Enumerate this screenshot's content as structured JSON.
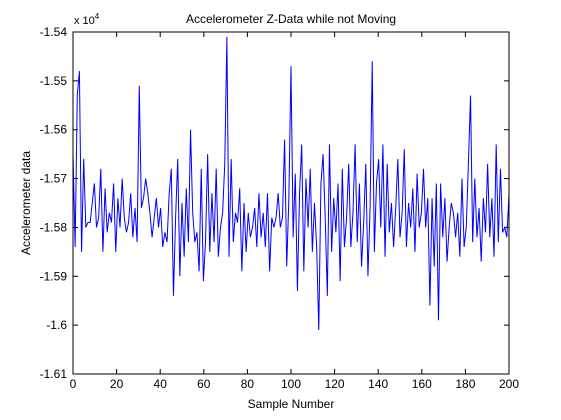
{
  "chart_data": {
    "type": "line",
    "title": "Accelerometer Z-Data while not Moving",
    "xlabel": "Sample Number",
    "ylabel": "Accelerometer data",
    "exponent_label": "x 10",
    "exponent_power": "4",
    "xlim": [
      0,
      200
    ],
    "ylim": [
      -1.61,
      -1.54
    ],
    "xticks": [
      0,
      20,
      40,
      60,
      80,
      100,
      120,
      140,
      160,
      180,
      200
    ],
    "xtick_labels": [
      "0",
      "20",
      "40",
      "60",
      "80",
      "100",
      "120",
      "140",
      "160",
      "180",
      "200"
    ],
    "yticks": [
      -1.61,
      -1.6,
      -1.59,
      -1.58,
      -1.57,
      -1.56,
      -1.55,
      -1.54
    ],
    "ytick_labels": [
      "-1.61",
      "-1.6",
      "-1.59",
      "-1.58",
      "-1.57",
      "-1.56",
      "-1.55",
      "-1.54"
    ],
    "grid": false,
    "line_color": "#0000ff",
    "series": [
      {
        "values": [
          -1.565,
          -1.584,
          -1.553,
          -1.548,
          -1.585,
          -1.566,
          -1.58,
          -1.579,
          -1.579,
          -1.575,
          -1.571,
          -1.58,
          -1.578,
          -1.568,
          -1.585,
          -1.572,
          -1.581,
          -1.577,
          -1.579,
          -1.571,
          -1.585,
          -1.574,
          -1.58,
          -1.57,
          -1.578,
          -1.581,
          -1.579,
          -1.573,
          -1.582,
          -1.576,
          -1.583,
          -1.551,
          -1.576,
          -1.574,
          -1.57,
          -1.573,
          -1.577,
          -1.582,
          -1.578,
          -1.574,
          -1.58,
          -1.576,
          -1.584,
          -1.581,
          -1.583,
          -1.573,
          -1.568,
          -1.594,
          -1.578,
          -1.566,
          -1.59,
          -1.575,
          -1.586,
          -1.572,
          -1.583,
          -1.56,
          -1.577,
          -1.583,
          -1.581,
          -1.589,
          -1.568,
          -1.591,
          -1.583,
          -1.565,
          -1.585,
          -1.573,
          -1.583,
          -1.568,
          -1.586,
          -1.58,
          -1.577,
          -1.567,
          -1.541,
          -1.586,
          -1.566,
          -1.583,
          -1.577,
          -1.579,
          -1.572,
          -1.589,
          -1.575,
          -1.585,
          -1.577,
          -1.582,
          -1.58,
          -1.576,
          -1.584,
          -1.573,
          -1.582,
          -1.577,
          -1.584,
          -1.573,
          -1.589,
          -1.578,
          -1.58,
          -1.578,
          -1.573,
          -1.58,
          -1.578,
          -1.562,
          -1.588,
          -1.574,
          -1.547,
          -1.582,
          -1.569,
          -1.593,
          -1.573,
          -1.563,
          -1.589,
          -1.57,
          -1.58,
          -1.568,
          -1.585,
          -1.575,
          -1.584,
          -1.601,
          -1.571,
          -1.565,
          -1.578,
          -1.594,
          -1.563,
          -1.585,
          -1.574,
          -1.581,
          -1.571,
          -1.591,
          -1.568,
          -1.584,
          -1.578,
          -1.567,
          -1.584,
          -1.577,
          -1.563,
          -1.583,
          -1.571,
          -1.588,
          -1.579,
          -1.567,
          -1.59,
          -1.576,
          -1.546,
          -1.585,
          -1.571,
          -1.566,
          -1.58,
          -1.563,
          -1.586,
          -1.567,
          -1.581,
          -1.575,
          -1.584,
          -1.576,
          -1.566,
          -1.582,
          -1.577,
          -1.564,
          -1.584,
          -1.575,
          -1.58,
          -1.572,
          -1.585,
          -1.569,
          -1.58,
          -1.577,
          -1.568,
          -1.58,
          -1.574,
          -1.596,
          -1.574,
          -1.588,
          -1.571,
          -1.599,
          -1.571,
          -1.582,
          -1.574,
          -1.587,
          -1.58,
          -1.575,
          -1.577,
          -1.582,
          -1.577,
          -1.586,
          -1.57,
          -1.584,
          -1.58,
          -1.567,
          -1.553,
          -1.583,
          -1.57,
          -1.582,
          -1.576,
          -1.587,
          -1.574,
          -1.581,
          -1.567,
          -1.582,
          -1.574,
          -1.586,
          -1.563,
          -1.583,
          -1.568,
          -1.581,
          -1.58,
          -1.582,
          -1.573
        ]
      }
    ]
  }
}
